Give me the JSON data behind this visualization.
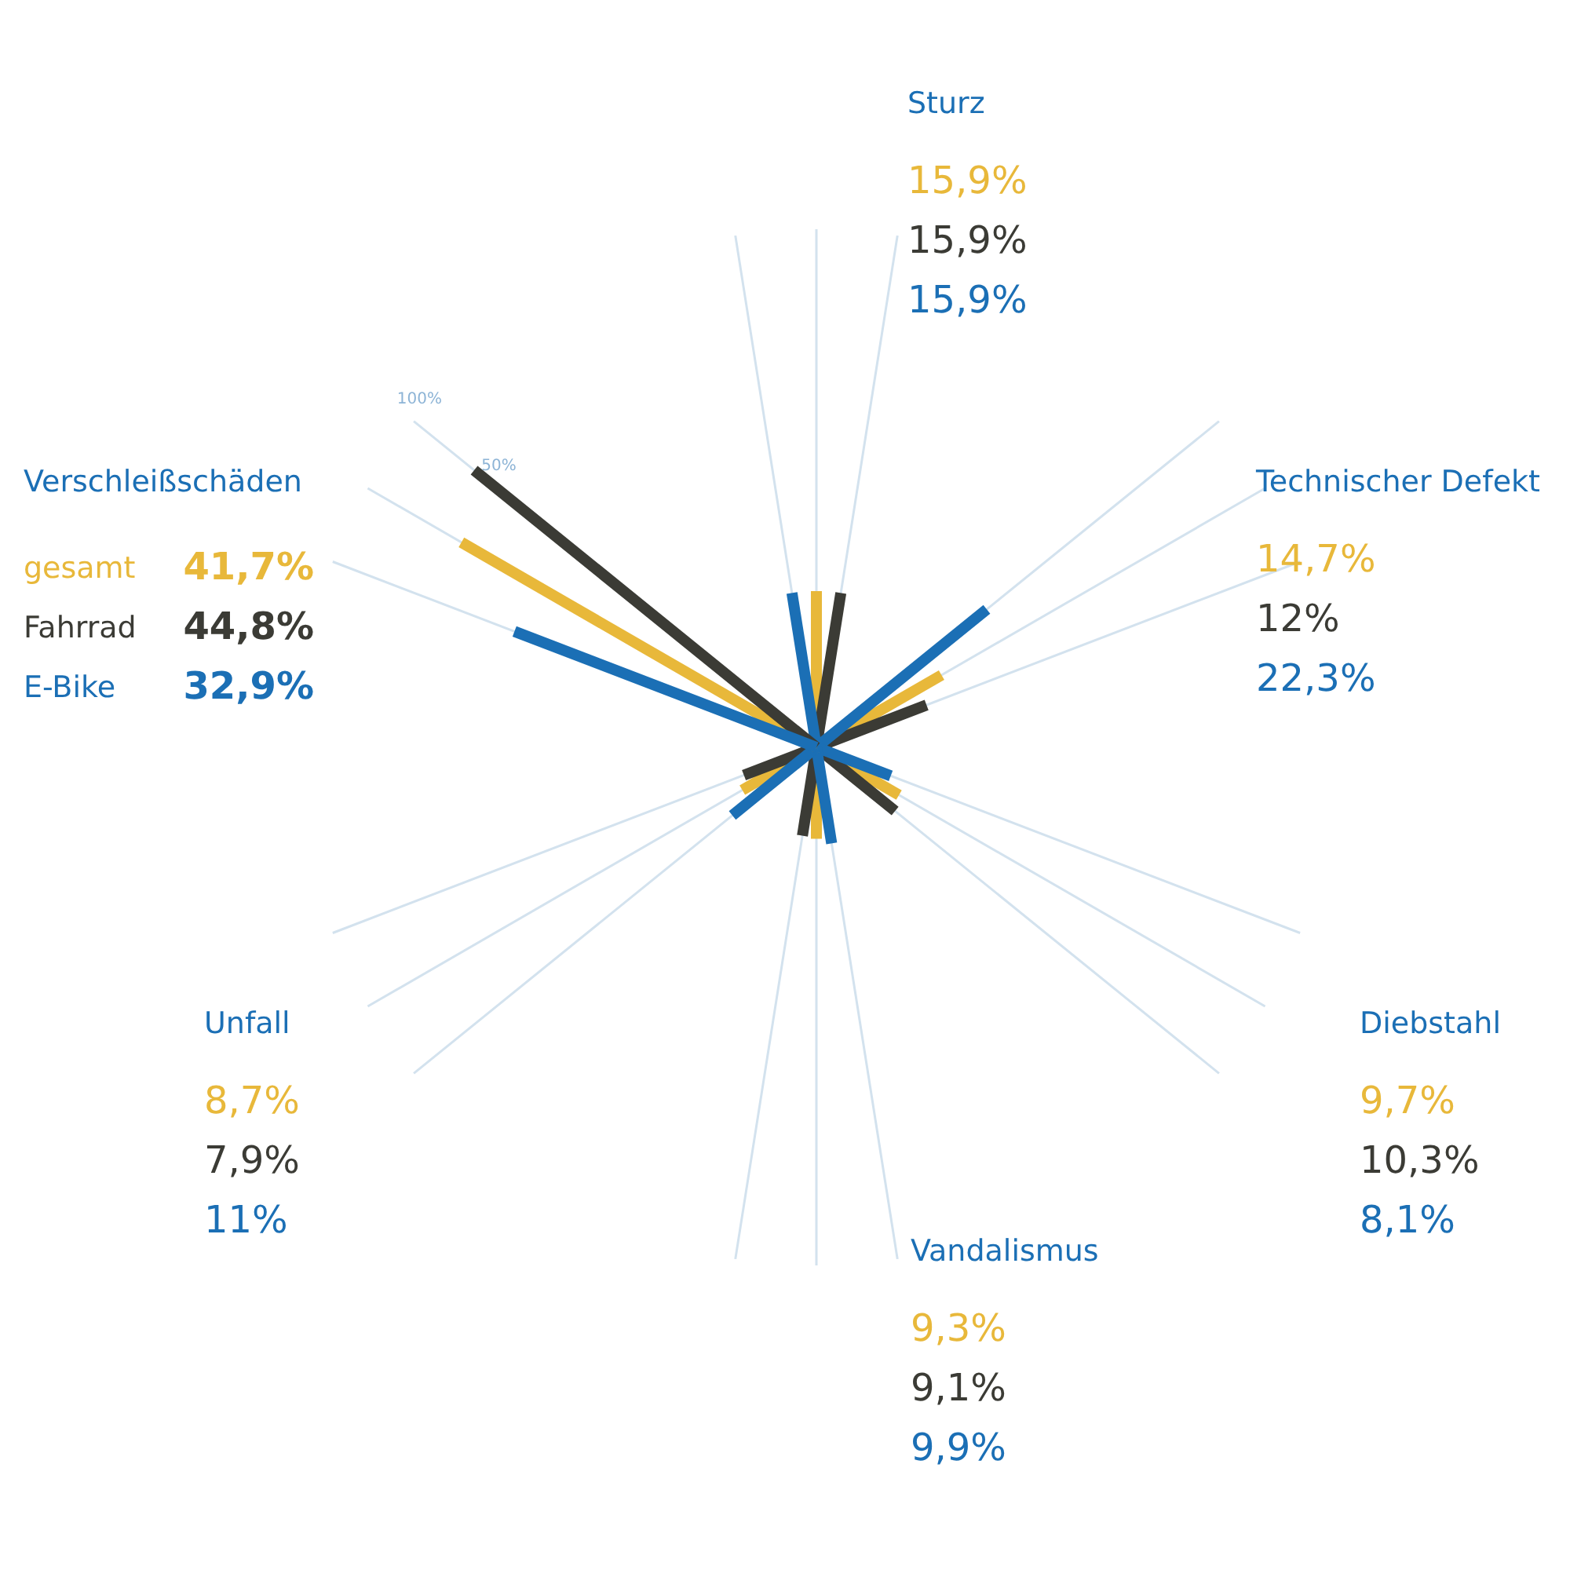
{
  "chart_data": {
    "type": "other",
    "categories": [
      "Sturz",
      "Technischer Defekt",
      "Diebstahl",
      "Vandalismus",
      "Unfall",
      "Verschleißschäden"
    ],
    "series": [
      {
        "name": "gesamt",
        "color": "#e8b83a",
        "values": [
          15.9,
          14.7,
          9.7,
          9.3,
          8.7,
          41.7
        ],
        "value_labels": [
          "15,9%",
          "14,7%",
          "9,7%",
          "9,3%",
          "8,7%",
          "41,7%"
        ]
      },
      {
        "name": "Fahrrad",
        "color": "#3b3b35",
        "values": [
          15.9,
          12,
          10.3,
          9.1,
          7.9,
          44.8
        ],
        "value_labels": [
          "15,9%",
          "12%",
          "10,3%",
          "9,1%",
          "7,9%",
          "44,8%"
        ]
      },
      {
        "name": "E-Bike",
        "color": "#1b6fb5",
        "values": [
          15.9,
          22.3,
          8.1,
          9.9,
          11,
          32.9
        ],
        "value_labels": [
          "15,9%",
          "22,3%",
          "8,1%",
          "9,9%",
          "11%",
          "32,9%"
        ]
      }
    ],
    "annotations": [
      "100%",
      "50%"
    ]
  }
}
